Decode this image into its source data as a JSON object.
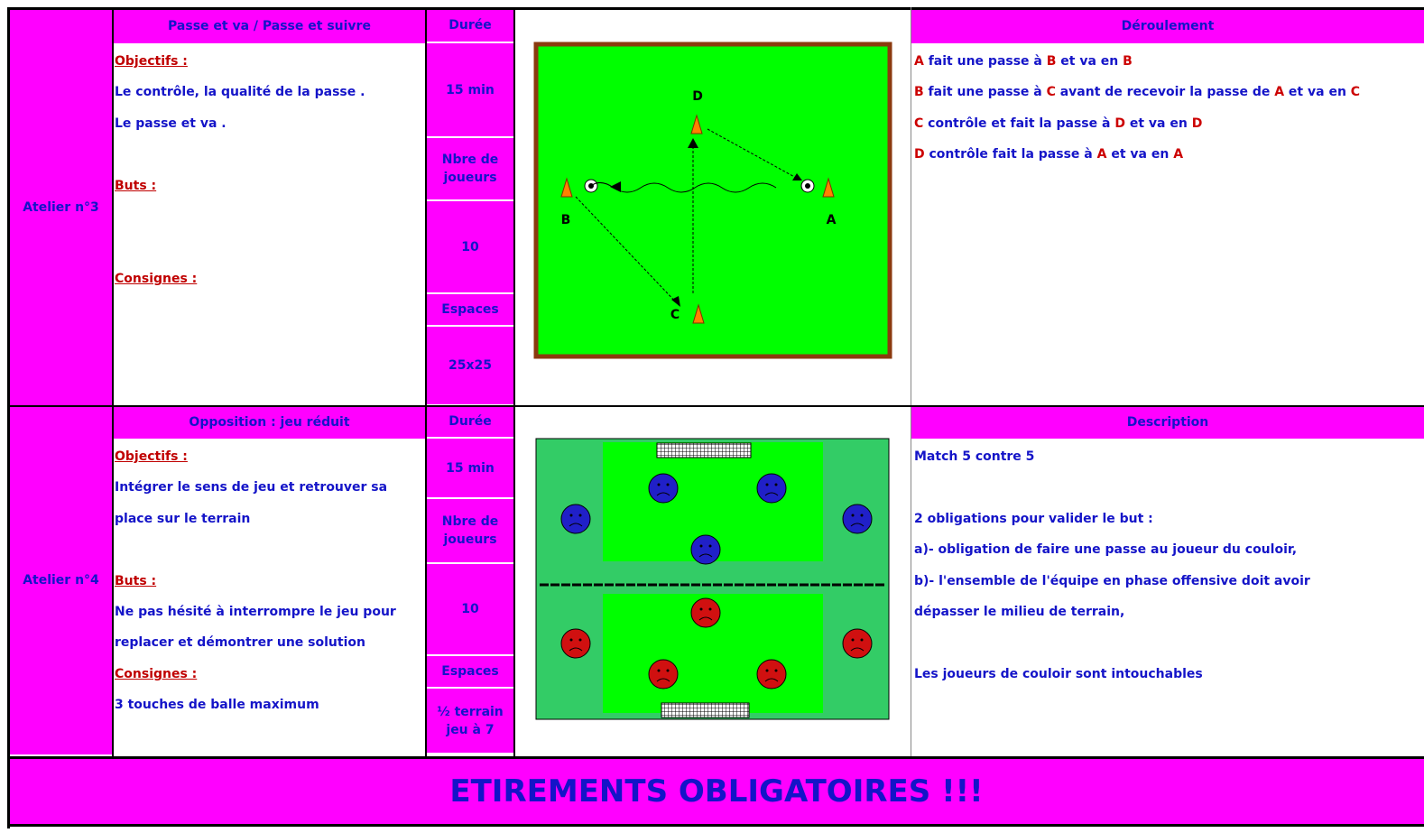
{
  "workshops": [
    {
      "name": "Atelier n°3",
      "title": "Passe et va / Passe et suivre",
      "duration_label": "Durée",
      "duration": "15 min",
      "players_label": "Nbre de joueurs",
      "players": "10",
      "space_label": "Espaces",
      "space": "25x25",
      "sections": [
        {
          "heading": "Objectifs :",
          "lines": [
            "Le contrôle, la qualité de la passe .",
            "Le passe et va ."
          ]
        },
        {
          "heading": "Buts :",
          "lines": []
        },
        {
          "heading": "Consignes :",
          "lines": []
        }
      ],
      "diagram_labels": [
        "D",
        "B",
        "A",
        "C"
      ],
      "right_title": "Déroulement",
      "right_lines": [
        [
          {
            "text": "A",
            "color": "#cc0000"
          },
          {
            "text": " fait une passe à ",
            "color": "#1414c8"
          },
          {
            "text": "B",
            "color": "#cc0000"
          },
          {
            "text": " et va en ",
            "color": "#1414c8"
          },
          {
            "text": "B",
            "color": "#cc0000"
          }
        ],
        [
          {
            "text": "B",
            "color": "#cc0000"
          },
          {
            "text": " fait une passe à ",
            "color": "#1414c8"
          },
          {
            "text": "C",
            "color": "#cc0000"
          },
          {
            "text": " avant de recevoir la passe de ",
            "color": "#1414c8"
          },
          {
            "text": "A",
            "color": "#cc0000"
          },
          {
            "text": " et va en ",
            "color": "#1414c8"
          },
          {
            "text": "C",
            "color": "#cc0000"
          }
        ],
        [
          {
            "text": "C",
            "color": "#cc0000"
          },
          {
            "text": " contrôle et fait la passe à ",
            "color": "#1414c8"
          },
          {
            "text": "D",
            "color": "#cc0000"
          },
          {
            "text": " et va en ",
            "color": "#1414c8"
          },
          {
            "text": "D",
            "color": "#cc0000"
          }
        ],
        [
          {
            "text": "D",
            "color": "#cc0000"
          },
          {
            "text": " contrôle fait la passe à ",
            "color": "#1414c8"
          },
          {
            "text": "A",
            "color": "#cc0000"
          },
          {
            "text": " et va en ",
            "color": "#1414c8"
          },
          {
            "text": "A",
            "color": "#cc0000"
          }
        ]
      ]
    },
    {
      "name": "Atelier n°4",
      "title": "Opposition : jeu réduit",
      "duration_label": "Durée",
      "duration": "15 min",
      "players_label": "Nbre de joueurs",
      "players": "10",
      "space_label": "Espaces",
      "space": "½ terrain jeu à 7",
      "sections": [
        {
          "heading": "Objectifs :",
          "lines": [
            "Intégrer le sens de jeu et retrouver sa",
            "place sur le terrain"
          ]
        },
        {
          "heading": "Buts :",
          "lines": [
            "Ne pas hésité à interrompre le jeu pour",
            "replacer et démontrer une solution"
          ]
        },
        {
          "heading": "Consignes :",
          "lines": [
            "3 touches de balle maximum"
          ]
        }
      ],
      "right_title": "Description",
      "right_paragraphs": [
        [
          "Match 5 contre 5"
        ],
        [
          "2 obligations pour valider le but :",
          "a)- obligation de faire une passe au joueur du couloir,",
          "b)- l'ensemble de l'équipe en phase offensive doit avoir",
          "dépasser le milieu de terrain,"
        ],
        [
          "Les joueurs de couloir sont intouchables"
        ]
      ]
    }
  ],
  "footer": "ETIREMENTS OBLIGATOIRES !!!"
}
